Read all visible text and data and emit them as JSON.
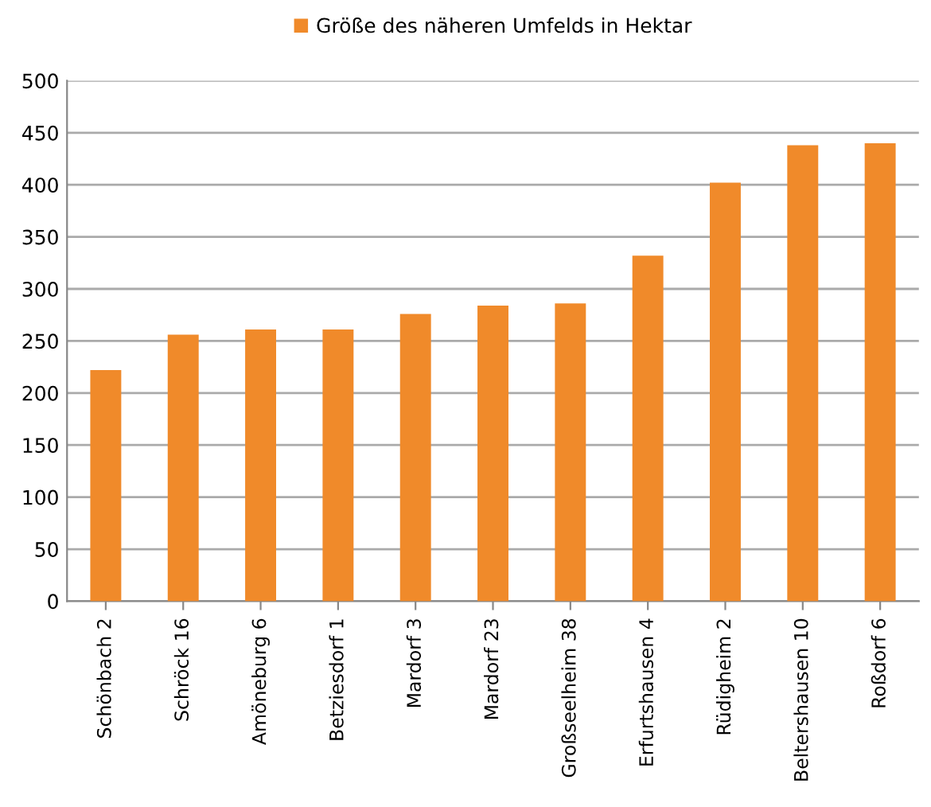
{
  "chart_data": {
    "type": "bar",
    "categories": [
      "Schönbach 2",
      "Schröck 16",
      "Amöneburg 6",
      "Betziesdorf 1",
      "Mardorf 3",
      "Mardorf 23",
      "Großseelheim 38",
      "Erfurtshausen 4",
      "Rüdigheim 2",
      "Beltershausen 10",
      "Roßdorf 6"
    ],
    "series": [
      {
        "name": "Größe des näheren Umfelds in Hektar",
        "color": "#f08a2a",
        "values": [
          222,
          256,
          261,
          261,
          276,
          284,
          286,
          332,
          402,
          438,
          440
        ]
      }
    ],
    "ylim": [
      0,
      500
    ],
    "yticks": [
      0,
      50,
      100,
      150,
      200,
      250,
      300,
      350,
      400,
      450,
      500
    ],
    "grid": "y",
    "legend": "top"
  }
}
